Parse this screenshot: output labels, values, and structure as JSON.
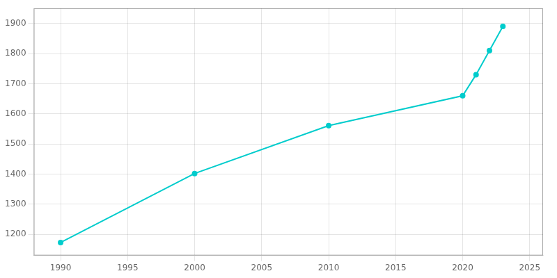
{
  "chart_data": {
    "type": "line",
    "x": [
      1990,
      2000,
      2010,
      2020,
      2021,
      2022,
      2023
    ],
    "values": [
      1173,
      1402,
      1561,
      1660,
      1730,
      1810,
      1890
    ],
    "color": "#00CCCC",
    "marker": "circle",
    "xlim": [
      1988,
      2026
    ],
    "ylim": [
      1130,
      1950
    ],
    "xticks": [
      1990,
      1995,
      2000,
      2005,
      2010,
      2015,
      2020,
      2025
    ],
    "yticks": [
      1200,
      1300,
      1400,
      1500,
      1600,
      1700,
      1800,
      1900
    ],
    "grid": true
  }
}
